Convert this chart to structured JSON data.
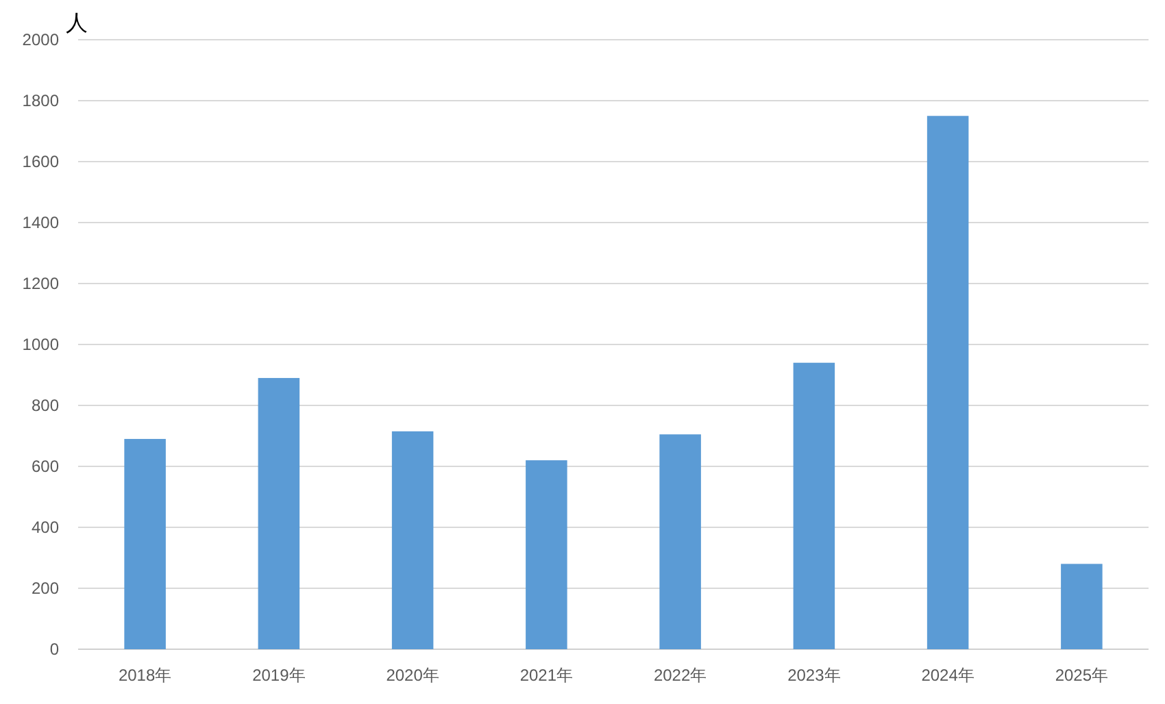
{
  "chart_data": {
    "type": "bar",
    "ylabel": "人",
    "categories": [
      "2018年",
      "2019年",
      "2020年",
      "2021年",
      "2022年",
      "2023年",
      "2024年",
      "2025年"
    ],
    "values": [
      690,
      890,
      715,
      620,
      705,
      940,
      1750,
      280
    ],
    "color": "#5b9bd5",
    "ylim": [
      0,
      2000
    ],
    "yticks": [
      0,
      200,
      400,
      600,
      800,
      1000,
      1200,
      1400,
      1600,
      1800,
      2000
    ],
    "grid": "y"
  }
}
